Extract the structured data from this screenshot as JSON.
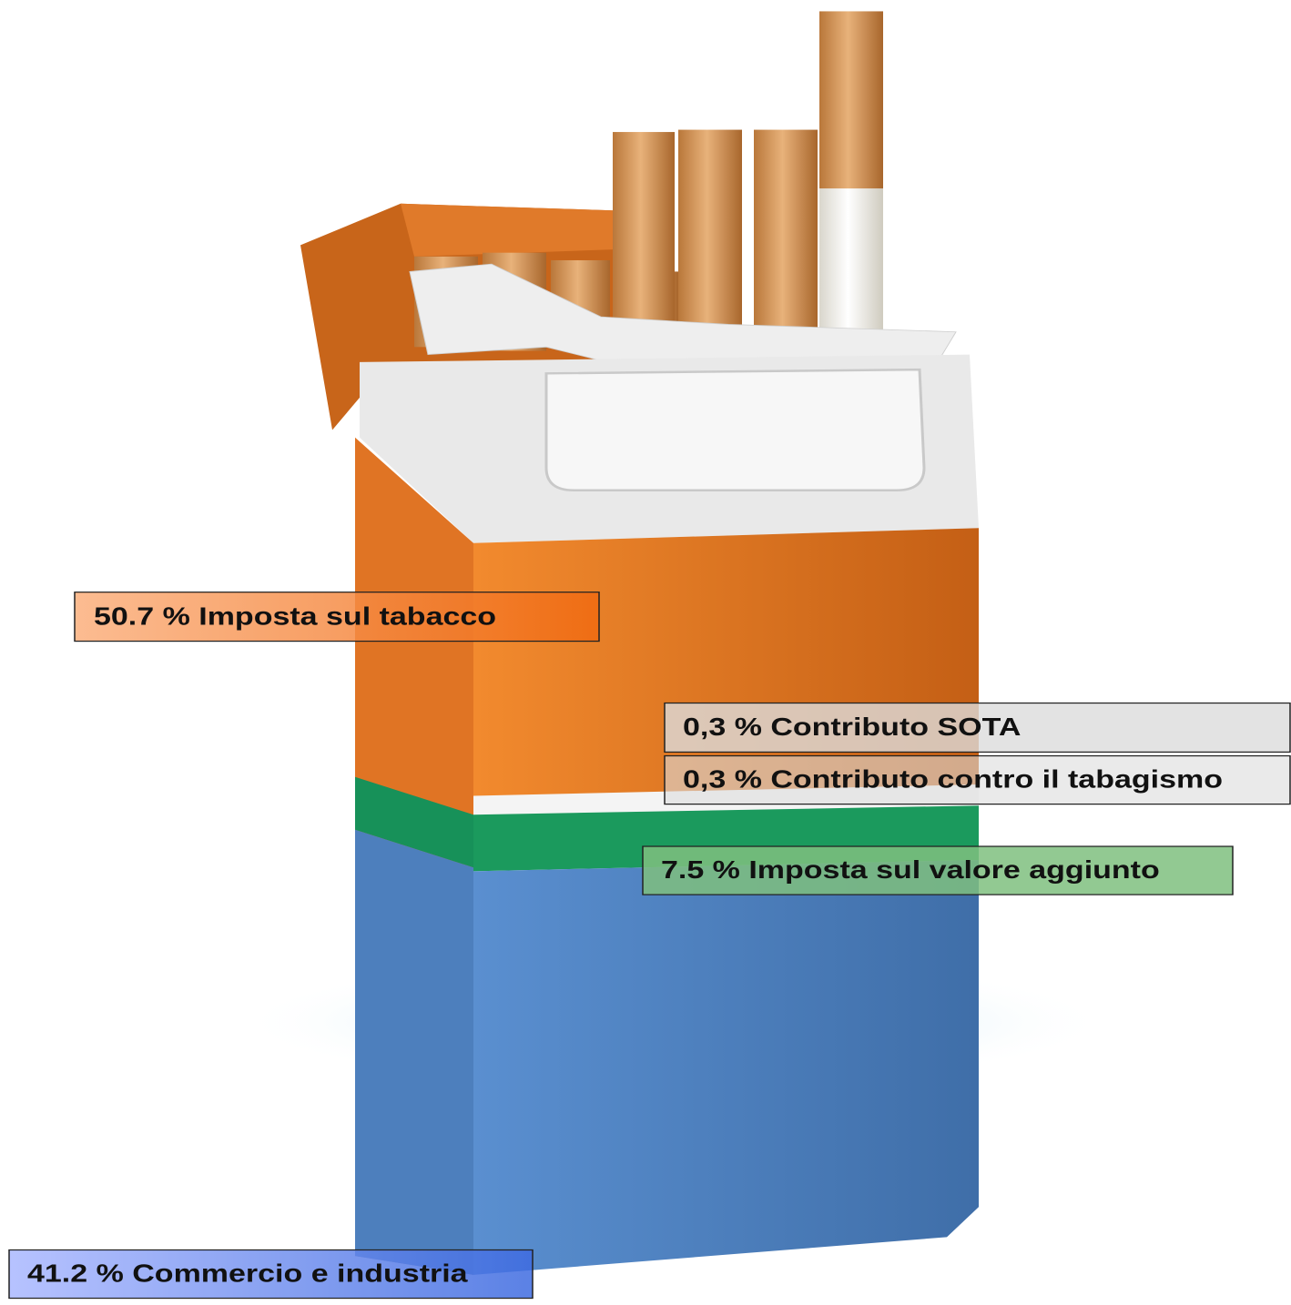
{
  "labels": [
    {
      "text": "50.7 % Imposta sul tabacco"
    },
    {
      "text": "0,3 % Contributo SOTA"
    },
    {
      "text": "0,3 % Contributo contro il tabagismo"
    },
    {
      "text": "7.5 % Imposta sul valore aggiunto"
    },
    {
      "text": "41.2 % Commercio e industria"
    }
  ]
}
